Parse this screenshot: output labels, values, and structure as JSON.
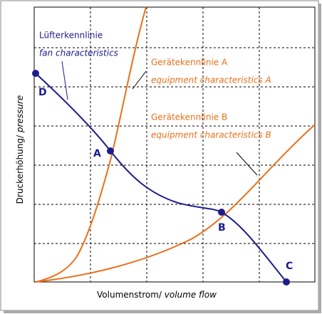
{
  "curves": {
    "fan": {
      "label": "Lüfterkennlinie",
      "label_en": "fan characteristics"
    },
    "equipment_a": {
      "label": "Gerätekennlinie A",
      "label_en": "equipment characteristics A"
    },
    "equipment_b": {
      "label": "Gerätekennlinie B",
      "label_en": "equipment characteristics B"
    }
  },
  "axes": {
    "y": {
      "label": "Druckerhöhung/",
      "label_en": "pressure"
    },
    "x": {
      "label": "Volumenstrom/",
      "label_en": "volume flow"
    }
  },
  "points": {
    "d": "D",
    "a": "A",
    "b": "B",
    "c": "C"
  }
}
